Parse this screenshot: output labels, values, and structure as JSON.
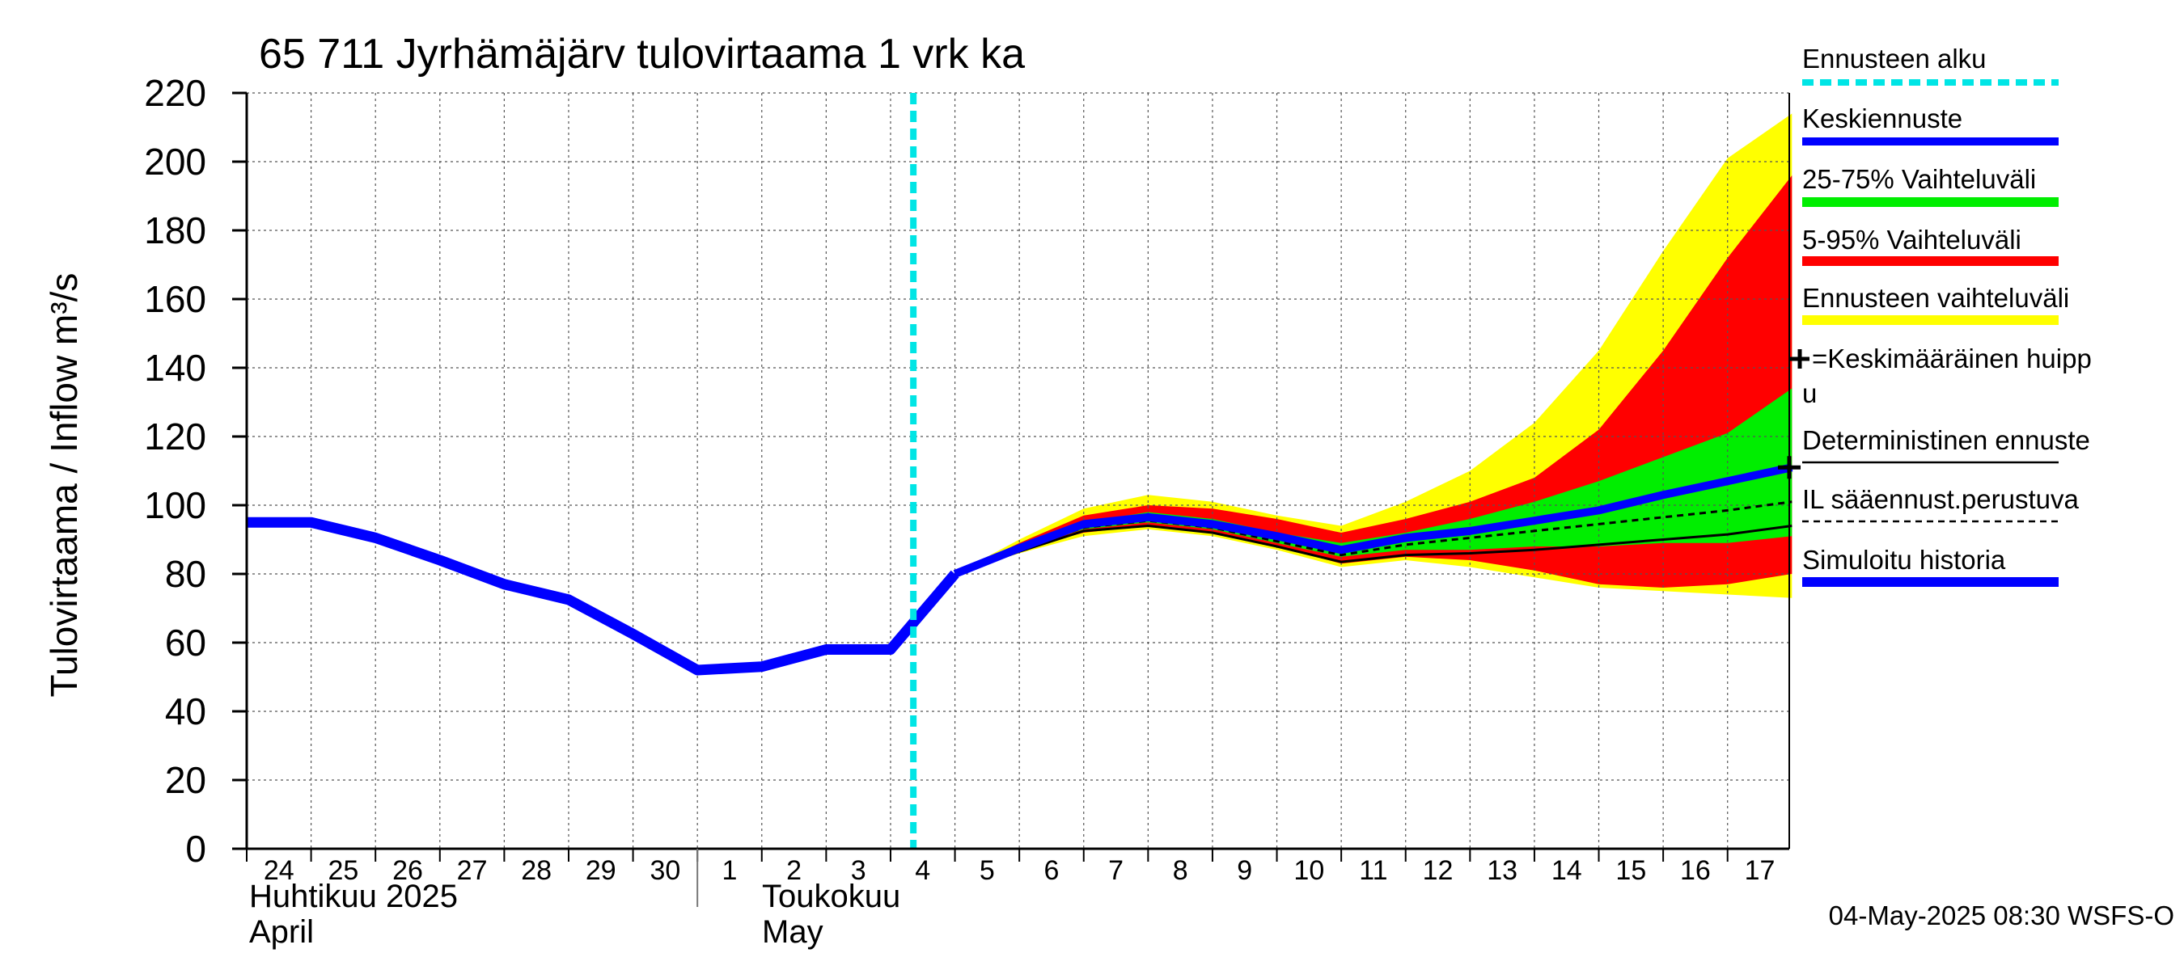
{
  "chart_data": {
    "type": "area",
    "title": "65 711 Jyrhämäjärv tulovirtaama 1 vrk ka",
    "ylabel": "Tulovirtaama / Inflow    m³/s",
    "ylim": [
      0,
      220
    ],
    "yticks": [
      0,
      20,
      40,
      60,
      80,
      100,
      120,
      140,
      160,
      180,
      200,
      220
    ],
    "x_range": [
      "2025-04-24",
      "2025-05-17T23:00"
    ],
    "xtick_days": [
      "24",
      "25",
      "26",
      "27",
      "28",
      "29",
      "30",
      "1",
      "2",
      "3",
      "4",
      "5",
      "6",
      "7",
      "8",
      "9",
      "10",
      "11",
      "12",
      "13",
      "14",
      "15",
      "16",
      "17"
    ],
    "month_labels": [
      {
        "fi": "Huhtikuu  2025",
        "en": "April"
      },
      {
        "fi": "Toukokuu",
        "en": "May"
      }
    ],
    "grid": true,
    "forecast_start": "2025-05-04T08:30",
    "series": [
      {
        "name": "Ennusteen vaihteluväli",
        "color": "#ffff00",
        "x": [
          "2025-05-05",
          "2025-05-06",
          "2025-05-07",
          "2025-05-08",
          "2025-05-09",
          "2025-05-10",
          "2025-05-11",
          "2025-05-12",
          "2025-05-13",
          "2025-05-14",
          "2025-05-15",
          "2025-05-16",
          "2025-05-17",
          "2025-05-18"
        ],
        "upper": [
          80,
          90,
          99,
          103,
          101,
          97,
          94,
          101,
          110,
          124,
          145,
          174,
          201,
          214
        ],
        "lower": [
          80,
          86,
          91,
          93,
          91,
          87,
          82,
          84,
          82,
          79,
          76,
          75,
          74,
          73
        ]
      },
      {
        "name": "5-95% Vaihteluväli",
        "color": "#ff0000",
        "x": [
          "2025-05-05",
          "2025-05-06",
          "2025-05-07",
          "2025-05-08",
          "2025-05-09",
          "2025-05-10",
          "2025-05-11",
          "2025-05-12",
          "2025-05-13",
          "2025-05-14",
          "2025-05-15",
          "2025-05-16",
          "2025-05-17",
          "2025-05-18"
        ],
        "upper": [
          80,
          89,
          97,
          100,
          99,
          96,
          92,
          96,
          101,
          108,
          122,
          145,
          172,
          196
        ],
        "lower": [
          80,
          87,
          92,
          94,
          92,
          88,
          83,
          85,
          84,
          81,
          77,
          76,
          77,
          80
        ]
      },
      {
        "name": "25-75% Vaihteluväli",
        "color": "#00ee00",
        "x": [
          "2025-05-05",
          "2025-05-06",
          "2025-05-07",
          "2025-05-08",
          "2025-05-09",
          "2025-05-10",
          "2025-05-11",
          "2025-05-12",
          "2025-05-13",
          "2025-05-14",
          "2025-05-15",
          "2025-05-16",
          "2025-05-17",
          "2025-05-18"
        ],
        "upper": [
          80,
          88,
          95,
          98,
          96,
          92,
          89,
          92,
          96,
          101,
          107,
          114,
          121,
          134
        ],
        "lower": [
          80,
          87,
          93,
          95,
          93,
          89,
          85,
          87,
          87,
          88,
          88,
          89,
          89,
          91
        ]
      },
      {
        "name": "Keskiennuste",
        "color": "#0000ff",
        "x": [
          "2025-05-05",
          "2025-05-06",
          "2025-05-07",
          "2025-05-08",
          "2025-05-09",
          "2025-05-10",
          "2025-05-11",
          "2025-05-12",
          "2025-05-13",
          "2025-05-14",
          "2025-05-15",
          "2025-05-16",
          "2025-05-17",
          "2025-05-18"
        ],
        "values": [
          80,
          87.5,
          94.5,
          96.5,
          94.5,
          91,
          87,
          90.5,
          92.5,
          95.5,
          98.5,
          103,
          107,
          111
        ]
      },
      {
        "name": "Deterministinen ennuste",
        "color": "#000000",
        "x": [
          "2025-05-05",
          "2025-05-06",
          "2025-05-07",
          "2025-05-08",
          "2025-05-09",
          "2025-05-10",
          "2025-05-11",
          "2025-05-12",
          "2025-05-13",
          "2025-05-14",
          "2025-05-15",
          "2025-05-16",
          "2025-05-17",
          "2025-05-18"
        ],
        "values": [
          80,
          86.5,
          92.5,
          94,
          92,
          88,
          83.5,
          85.5,
          86,
          87,
          88.5,
          90,
          91.5,
          94
        ]
      },
      {
        "name": "IL sääennust.perustuva",
        "color": "#000000",
        "x": [
          "2025-05-05",
          "2025-05-06",
          "2025-05-07",
          "2025-05-08",
          "2025-05-09",
          "2025-05-10",
          "2025-05-11",
          "2025-05-12",
          "2025-05-13",
          "2025-05-14",
          "2025-05-15",
          "2025-05-16",
          "2025-05-17",
          "2025-05-18"
        ],
        "values": [
          80,
          87,
          93.5,
          95.5,
          93.5,
          89.5,
          85.5,
          88.5,
          90.5,
          92.5,
          94.5,
          96.5,
          98.5,
          101
        ]
      },
      {
        "name": "Simuloitu historia",
        "color": "#0000ff",
        "x": [
          "2025-04-24",
          "2025-04-25",
          "2025-04-26",
          "2025-04-27",
          "2025-04-28",
          "2025-04-29",
          "2025-04-30",
          "2025-05-01",
          "2025-05-02",
          "2025-05-03",
          "2025-05-04",
          "2025-05-05"
        ],
        "values": [
          95,
          95,
          90.5,
          84,
          77,
          72.5,
          62.5,
          52,
          53,
          58,
          58,
          80
        ]
      }
    ],
    "mean_peak": {
      "x": "2025-05-17T23:00",
      "y": 111
    }
  },
  "legend": {
    "forecast_start": "Ennusteen alku",
    "mean_forecast": "Keskiennuste",
    "range_25_75": "25-75% Vaihteluväli",
    "range_5_95": "5-95% Vaihteluväli",
    "forecast_range": "Ennusteen vaihteluväli",
    "mean_peak_line1": "=Keskimääräinen huipp",
    "mean_peak_line2": "u",
    "deterministic": "Deterministinen ennuste",
    "il_based": "IL sääennust.perustuva",
    "sim_history": "Simuloitu historia"
  },
  "colors": {
    "yellow": "#ffff00",
    "red": "#ff0000",
    "green": "#00ee00",
    "blue": "#0000ff",
    "cyan": "#00e5e5",
    "black": "#000000"
  },
  "footer": {
    "timestamp": "04-May-2025 08:30 WSFS-O"
  }
}
